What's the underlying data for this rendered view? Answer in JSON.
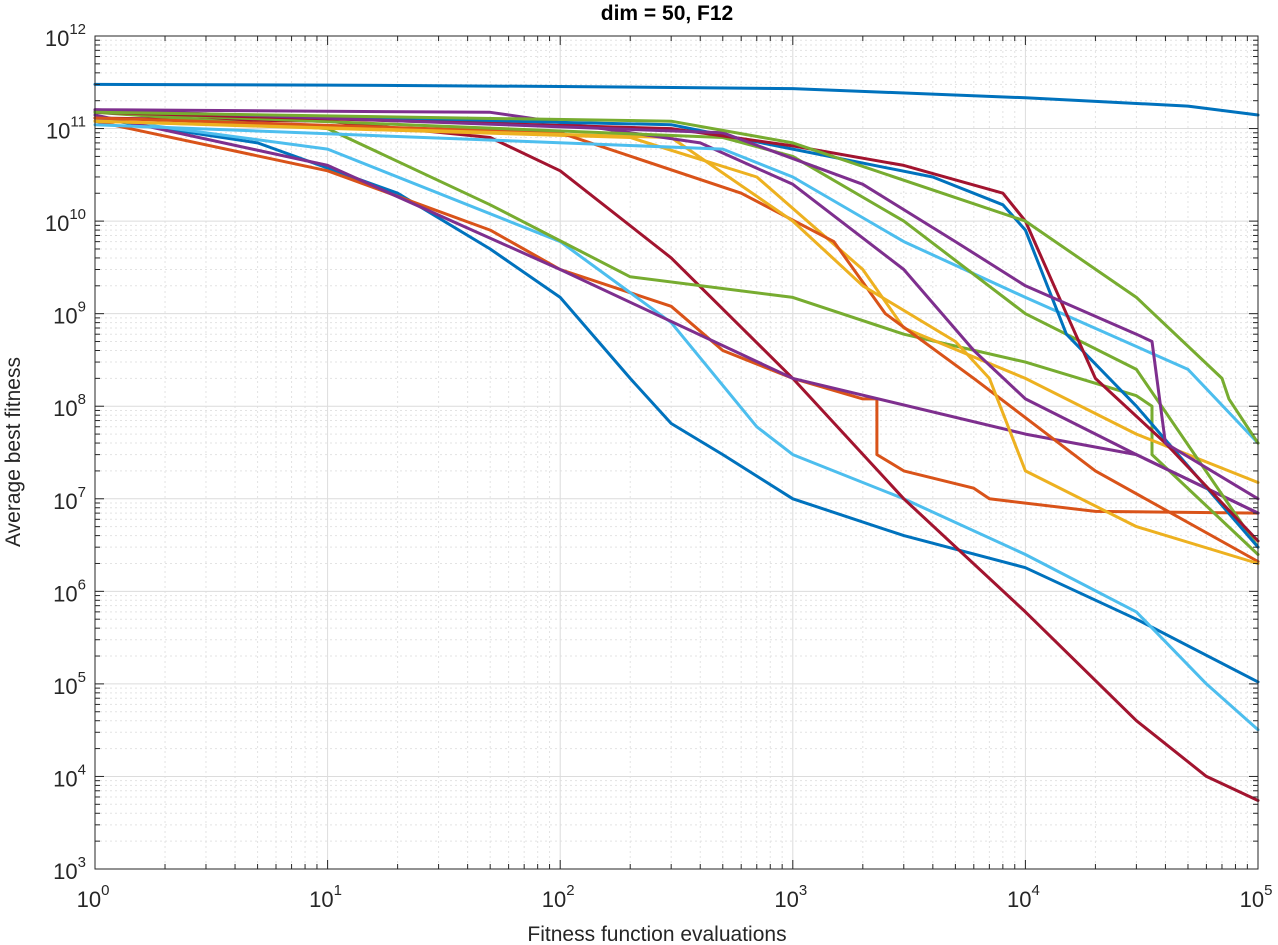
{
  "chart_data": {
    "type": "line",
    "title": "dim = 50,  F12",
    "xlabel": "Fitness function evaluations",
    "ylabel": "Average best fitness",
    "xscale": "log",
    "yscale": "log",
    "xlim": [
      1,
      100000
    ],
    "ylim": [
      1000,
      1000000000000
    ],
    "grid": "major+minor",
    "x_ticks": [
      {
        "base": "10",
        "exp": "0",
        "value": 1
      },
      {
        "base": "10",
        "exp": "1",
        "value": 10
      },
      {
        "base": "10",
        "exp": "2",
        "value": 100
      },
      {
        "base": "10",
        "exp": "3",
        "value": 1000
      },
      {
        "base": "10",
        "exp": "4",
        "value": 10000
      },
      {
        "base": "10",
        "exp": "5",
        "value": 100000
      }
    ],
    "y_ticks": [
      {
        "base": "10",
        "exp": "3",
        "value": 1000
      },
      {
        "base": "10",
        "exp": "4",
        "value": 10000
      },
      {
        "base": "10",
        "exp": "5",
        "value": 100000
      },
      {
        "base": "10",
        "exp": "6",
        "value": 1000000
      },
      {
        "base": "10",
        "exp": "7",
        "value": 10000000
      },
      {
        "base": "10",
        "exp": "8",
        "value": 100000000
      },
      {
        "base": "10",
        "exp": "9",
        "value": 1000000000
      },
      {
        "base": "10",
        "exp": "10",
        "value": 10000000000
      },
      {
        "base": "10",
        "exp": "11",
        "value": 100000000000
      },
      {
        "base": "10",
        "exp": "12",
        "value": 1000000000000
      }
    ],
    "series": [
      {
        "name": "series-1",
        "color": "#0072BD",
        "points": [
          [
            1,
            300000000000.0
          ],
          [
            10,
            295000000000.0
          ],
          [
            100,
            285000000000.0
          ],
          [
            1000,
            270000000000.0
          ],
          [
            10000,
            215000000000.0
          ],
          [
            50000,
            175000000000.0
          ],
          [
            100000,
            140000000000.0
          ]
        ]
      },
      {
        "name": "series-2",
        "color": "#0072BD",
        "points": [
          [
            1,
            130000000000.0
          ],
          [
            5,
            70000000000.0
          ],
          [
            20,
            20000000000.0
          ],
          [
            50,
            5000000000.0
          ],
          [
            100,
            1500000000.0
          ],
          [
            200,
            200000000.0
          ],
          [
            300,
            65000000.0
          ],
          [
            500,
            30000000.0
          ],
          [
            1000,
            10000000.0
          ],
          [
            3000,
            4000000.0
          ],
          [
            10000,
            1800000.0
          ],
          [
            30000,
            500000.0
          ],
          [
            100000,
            105000.0
          ]
        ]
      },
      {
        "name": "series-3",
        "color": "#D95319",
        "points": [
          [
            1,
            120000000000.0
          ],
          [
            10,
            35000000000.0
          ],
          [
            50,
            8000000000.0
          ],
          [
            100,
            3000000000.0
          ],
          [
            300,
            1200000000.0
          ],
          [
            500,
            400000000.0
          ],
          [
            1000,
            200000000.0
          ],
          [
            2000,
            120000000.0
          ],
          [
            2300,
            120000000.0
          ],
          [
            2300,
            30000000.0
          ],
          [
            3000,
            20000000.0
          ],
          [
            6000,
            13000000.0
          ],
          [
            7000,
            10000000.0
          ],
          [
            20000,
            7300000.0
          ],
          [
            100000,
            7000000.0
          ]
        ]
      },
      {
        "name": "series-4",
        "color": "#4DBEEE",
        "points": [
          [
            1,
            130000000000.0
          ],
          [
            10,
            60000000000.0
          ],
          [
            100,
            6000000000.0
          ],
          [
            300,
            800000000.0
          ],
          [
            700,
            60000000.0
          ],
          [
            1000,
            30000000.0
          ],
          [
            3000,
            10000000.0
          ],
          [
            10000,
            2500000.0
          ],
          [
            30000,
            600000.0
          ],
          [
            60000,
            100000.0
          ],
          [
            100000,
            32000.0
          ]
        ]
      },
      {
        "name": "series-5",
        "color": "#A2142F",
        "points": [
          [
            1,
            130000000000.0
          ],
          [
            10,
            120000000000.0
          ],
          [
            50,
            80000000000.0
          ],
          [
            100,
            35000000000.0
          ],
          [
            300,
            4000000000.0
          ],
          [
            1000,
            200000000.0
          ],
          [
            3000,
            10000000.0
          ],
          [
            10000,
            600000.0
          ],
          [
            30000,
            40000.0
          ],
          [
            60000,
            10000.0
          ],
          [
            100000,
            5500.0
          ]
        ]
      },
      {
        "name": "series-6",
        "color": "#7E2F8E",
        "points": [
          [
            1,
            140000000000.0
          ],
          [
            10,
            40000000000.0
          ],
          [
            100,
            3000000000.0
          ],
          [
            1000,
            200000000.0
          ],
          [
            10000,
            50000000.0
          ],
          [
            30000,
            30000000.0
          ],
          [
            100000,
            7000000.0
          ]
        ]
      },
      {
        "name": "series-7",
        "color": "#77AC30",
        "points": [
          [
            1,
            150000000000.0
          ],
          [
            10,
            100000000000.0
          ],
          [
            50,
            15000000000.0
          ],
          [
            200,
            2500000000.0
          ],
          [
            1000,
            1500000000.0
          ],
          [
            3000,
            600000000.0
          ],
          [
            10000,
            300000000.0
          ],
          [
            30000,
            130000000.0
          ],
          [
            35000,
            100000000.0
          ],
          [
            35000,
            30000000.0
          ],
          [
            100000,
            2500000.0
          ]
        ]
      },
      {
        "name": "series-8",
        "color": "#EDB120",
        "points": [
          [
            1,
            120000000000.0
          ],
          [
            200,
            80000000000.0
          ],
          [
            700,
            30000000000.0
          ],
          [
            2000,
            3000000000.0
          ],
          [
            3000,
            700000000.0
          ],
          [
            10000,
            200000000.0
          ],
          [
            30000,
            50000000.0
          ],
          [
            100000,
            15000000.0
          ]
        ]
      },
      {
        "name": "series-9",
        "color": "#D95319",
        "points": [
          [
            1,
            130000000000.0
          ],
          [
            100,
            90000000000.0
          ],
          [
            600,
            20000000000.0
          ],
          [
            1500,
            6000000000.0
          ],
          [
            2500,
            1000000000.0
          ],
          [
            6000,
            200000000.0
          ],
          [
            20000,
            20000000.0
          ],
          [
            100000,
            2100000.0
          ]
        ]
      },
      {
        "name": "series-10",
        "color": "#EDB120",
        "points": [
          [
            1,
            120000000000.0
          ],
          [
            300,
            80000000000.0
          ],
          [
            1000,
            10000000000.0
          ],
          [
            2000,
            2000000000.0
          ],
          [
            5000,
            500000000.0
          ],
          [
            7000,
            200000000.0
          ],
          [
            10000,
            20000000.0
          ],
          [
            30000,
            5000000.0
          ],
          [
            100000,
            2000000.0
          ]
        ]
      },
      {
        "name": "series-11",
        "color": "#7E2F8E",
        "points": [
          [
            1,
            160000000000.0
          ],
          [
            50,
            150000000000.0
          ],
          [
            400,
            70000000000.0
          ],
          [
            1000,
            25000000000.0
          ],
          [
            3000,
            3000000000.0
          ],
          [
            6000,
            400000000.0
          ],
          [
            10000,
            120000000.0
          ],
          [
            30000,
            30000000.0
          ],
          [
            100000,
            7000000.0
          ]
        ]
      },
      {
        "name": "series-12",
        "color": "#4DBEEE",
        "points": [
          [
            1,
            110000000000.0
          ],
          [
            500,
            60000000000.0
          ],
          [
            1000,
            30000000000.0
          ],
          [
            3000,
            6000000000.0
          ],
          [
            10000,
            1500000000.0
          ],
          [
            50000,
            250000000.0
          ],
          [
            100000,
            40000000.0
          ]
        ]
      },
      {
        "name": "series-13",
        "color": "#77AC30",
        "points": [
          [
            1,
            150000000000.0
          ],
          [
            500,
            80000000000.0
          ],
          [
            1000,
            50000000000.0
          ],
          [
            3000,
            10000000000.0
          ],
          [
            10000,
            1000000000.0
          ],
          [
            30000,
            250000000.0
          ],
          [
            100000,
            3000000.0
          ]
        ]
      },
      {
        "name": "series-14",
        "color": "#0072BD",
        "points": [
          [
            1,
            150000000000.0
          ],
          [
            300,
            110000000000.0
          ],
          [
            1000,
            60000000000.0
          ],
          [
            4000,
            30000000000.0
          ],
          [
            8000,
            15000000000.0
          ],
          [
            10000,
            8000000000.0
          ],
          [
            15000,
            600000000.0
          ],
          [
            30000,
            100000000.0
          ],
          [
            100000,
            3000000.0
          ]
        ]
      },
      {
        "name": "series-15",
        "color": "#A2142F",
        "points": [
          [
            1,
            150000000000.0
          ],
          [
            300,
            100000000000.0
          ],
          [
            1000,
            65000000000.0
          ],
          [
            3000,
            40000000000.0
          ],
          [
            8000,
            20000000000.0
          ],
          [
            10000,
            10000000000.0
          ],
          [
            15000,
            1000000000.0
          ],
          [
            20000,
            200000000.0
          ],
          [
            40000,
            40000000.0
          ],
          [
            100000,
            3500000.0
          ]
        ]
      },
      {
        "name": "series-16",
        "color": "#7E2F8E",
        "points": [
          [
            1,
            160000000000.0
          ],
          [
            500,
            90000000000.0
          ],
          [
            2000,
            25000000000.0
          ],
          [
            5000,
            6000000000.0
          ],
          [
            10000,
            2000000000.0
          ],
          [
            30000,
            600000000.0
          ],
          [
            35000,
            500000000.0
          ],
          [
            40000,
            40000000.0
          ],
          [
            100000,
            10000000.0
          ]
        ]
      },
      {
        "name": "series-17",
        "color": "#77AC30",
        "points": [
          [
            1,
            150000000000.0
          ],
          [
            300,
            120000000000.0
          ],
          [
            1000,
            70000000000.0
          ],
          [
            10000,
            10000000000.0
          ],
          [
            30000,
            1500000000.0
          ],
          [
            70000,
            200000000.0
          ],
          [
            75000,
            120000000.0
          ],
          [
            100000,
            40000000.0
          ]
        ]
      }
    ]
  }
}
